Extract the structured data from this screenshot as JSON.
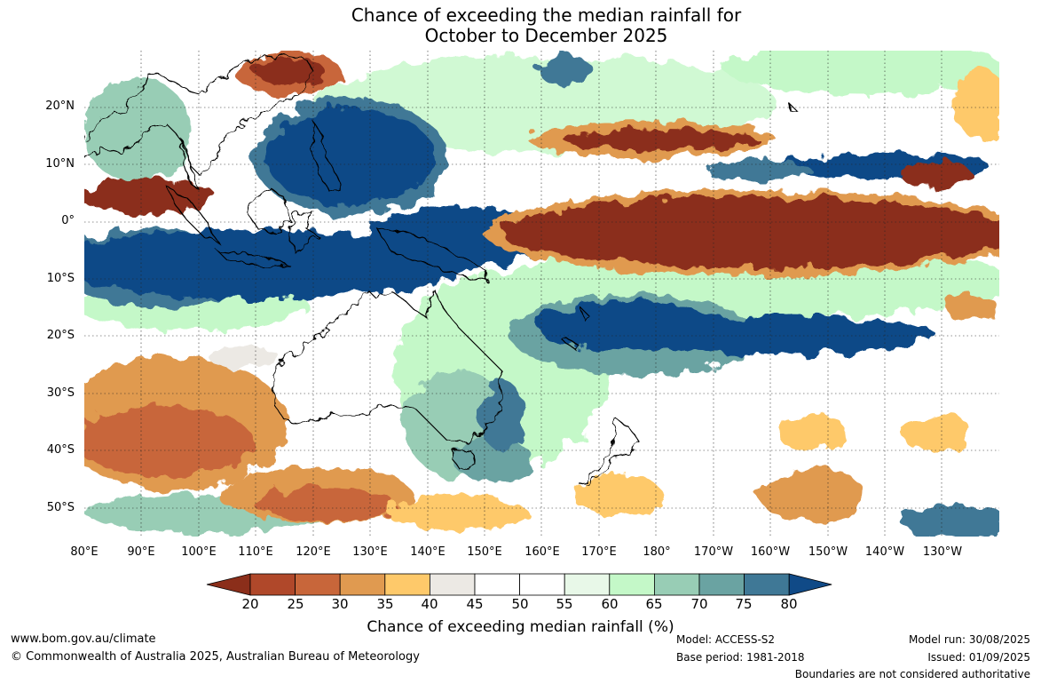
{
  "title": {
    "line1": "Chance of exceeding the median rainfall for",
    "line2": "October to December 2025"
  },
  "map": {
    "lat_labels": [
      "20°N",
      "10°N",
      "0°",
      "10°S",
      "20°S",
      "30°S",
      "40°S",
      "50°S"
    ],
    "lon_labels": [
      "80°E",
      "90°E",
      "100°E",
      "110°E",
      "120°E",
      "130°E",
      "140°E",
      "150°E",
      "160°E",
      "170°E",
      "180°",
      "170°W",
      "160°W",
      "150°W",
      "140°W",
      "130°W"
    ]
  },
  "colorbar": {
    "ticks": [
      "20",
      "25",
      "30",
      "35",
      "40",
      "45",
      "50",
      "55",
      "60",
      "65",
      "70",
      "75",
      "80"
    ],
    "colors": [
      "#8b2e1a",
      "#b0482a",
      "#c8663a",
      "#e09a50",
      "#fec96a",
      "#ece9e4",
      "#ffffff",
      "#ffffff",
      "#e8f8e8",
      "#c4f8c8",
      "#98cdb5",
      "#6aa3a2",
      "#3f7896",
      "#104a87"
    ],
    "label": "Chance of exceeding median rainfall (%)"
  },
  "footer": {
    "website": "www.bom.gov.au/climate",
    "copyright": "© Commonwealth of Australia 2025, Australian Bureau of Meteorology",
    "model": "Model: ACCESS-S2",
    "base_period": "Base period: 1981-2018",
    "model_run": "Model run: 30/08/2025",
    "issued": "Issued: 01/09/2025",
    "disclaimer": "Boundaries are not considered authoritative"
  }
}
